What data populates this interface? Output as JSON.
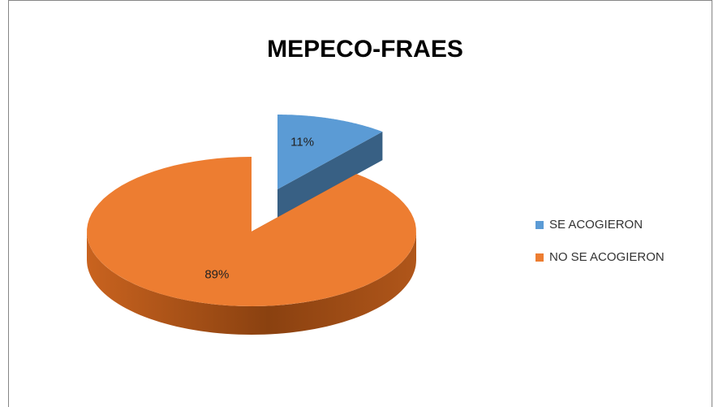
{
  "chart_data": {
    "type": "pie",
    "title": "MEPECO-FRAES",
    "categories": [
      "SE ACOGIERON",
      "NO SE ACOGIERON"
    ],
    "values": [
      11,
      89
    ],
    "value_labels": [
      "11%",
      "89%"
    ],
    "colors": [
      "#5b9bd5",
      "#ed7d31"
    ],
    "legend": "right"
  }
}
